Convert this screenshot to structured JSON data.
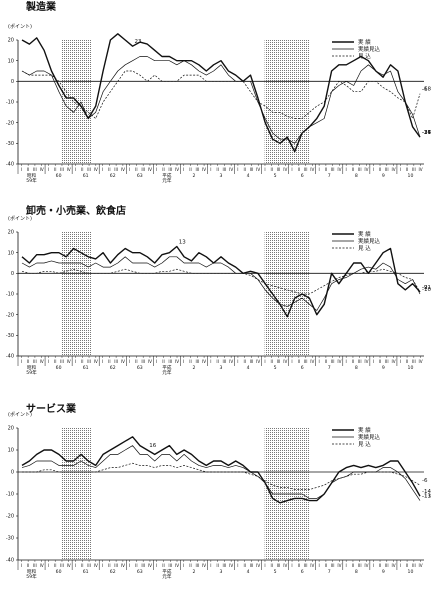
{
  "charts": [
    {
      "title": "製造業",
      "unit": "(ポイント)",
      "yticks": [
        20,
        10,
        0,
        -10,
        -20,
        -30,
        -40
      ],
      "ylim": [
        -40,
        20
      ],
      "legend": [
        "実 績",
        "実績見込",
        "見 込"
      ],
      "annotations": [
        {
          "i": 15,
          "s": 0,
          "text": "23"
        },
        {
          "i": 64,
          "s": 0,
          "text": "-34"
        },
        {
          "i": 112,
          "s": 0,
          "text": "-27"
        },
        {
          "i": 114,
          "s": 1,
          "text": "-27"
        },
        {
          "i": 114,
          "s": 2,
          "text": "-18"
        },
        {
          "i": 114,
          "s": 1,
          "text": "-16"
        },
        {
          "i": 115,
          "s": 2,
          "text": "-6"
        }
      ]
    },
    {
      "title": "卸売・小売業、飲食店",
      "unit": "(ポイント)",
      "yticks": [
        20,
        10,
        0,
        -10,
        -20,
        -30,
        -40
      ],
      "ylim": [
        -40,
        20
      ],
      "legend": [
        "実 績",
        "実績見込",
        "見 込"
      ],
      "annotations": [
        {
          "i": 21,
          "s": 0,
          "text": "13"
        },
        {
          "i": 62,
          "s": 0,
          "text": "-21"
        },
        {
          "i": 113,
          "s": 1,
          "text": "-10"
        },
        {
          "i": 115,
          "s": 2,
          "text": "-9"
        }
      ]
    },
    {
      "title": "サービス業",
      "unit": "(ポイント)",
      "yticks": [
        20,
        10,
        0,
        -10,
        -20,
        -30,
        -40
      ],
      "ylim": [
        -40,
        20
      ],
      "legend": [
        "実 績",
        "実績見込",
        "見 込"
      ],
      "annotations": [
        {
          "i": 17,
          "s": 0,
          "text": "16"
        },
        {
          "i": 62,
          "s": 0,
          "text": "-14"
        },
        {
          "i": 113,
          "s": 1,
          "text": "-11"
        },
        {
          "i": 115,
          "s": 2,
          "text": "-6"
        },
        {
          "i": 115,
          "s": 1,
          "text": "-13"
        }
      ]
    }
  ],
  "chart_data": [
    {
      "type": "line",
      "title": "製造業",
      "ylabel": "(ポイント)",
      "ylim": [
        -40,
        20
      ],
      "x_quarter_labels": [
        "I",
        "II",
        "III",
        "IV",
        "I",
        "II",
        "III",
        "IV",
        "I",
        "II",
        "III",
        "IV",
        "I",
        "II",
        "III",
        "IV",
        "I",
        "II",
        "III",
        "IV",
        "I",
        "II",
        "III",
        "IV",
        "I",
        "II",
        "III",
        "IV",
        "I",
        "II",
        "III",
        "IV",
        "I",
        "II",
        "III",
        "IV",
        "I",
        "II",
        "III",
        "IV",
        "I",
        "II",
        "III",
        "IV",
        "I",
        "II",
        "III",
        "IV",
        "I",
        "II",
        "III",
        "IV",
        "I",
        "II",
        "III",
        "IV",
        "I",
        "II",
        "III",
        "IV",
        "I",
        "II",
        "III",
        "IV",
        "I",
        "II",
        "III",
        "IV",
        "I",
        "II",
        "III",
        "IV",
        "I",
        "II",
        "III",
        "IV",
        "I",
        "II",
        "III",
        "IV",
        "I",
        "II",
        "III",
        "IV",
        "I",
        "II",
        "III",
        "IV",
        "I",
        "II",
        "III",
        "IV",
        "I",
        "II",
        "III",
        "IV",
        "I",
        "II",
        "III",
        "IV",
        "I",
        "II",
        "III",
        "IV",
        "I",
        "II",
        "III",
        "IV",
        "I",
        "II",
        "III",
        "IV",
        "I",
        "II",
        "III",
        "IV"
      ],
      "x_year_labels": [
        "昭和\n59年",
        "60",
        "61",
        "62",
        "63",
        "平成\n元年",
        "2",
        "3",
        "4",
        "5",
        "6",
        "7",
        "8",
        "9",
        "10"
      ],
      "shaded_periods": [
        [
          5,
          9
        ],
        [
          32,
          38
        ]
      ],
      "series": [
        {
          "name": "実 績",
          "style": "solid",
          "values": [
            20,
            18,
            21,
            15,
            5,
            -2,
            -8,
            -8,
            -12,
            -18,
            -12,
            5,
            20,
            23,
            20,
            17,
            19,
            18,
            15,
            12,
            12,
            10,
            10,
            10,
            8,
            5,
            8,
            10,
            5,
            3,
            0,
            3,
            -8,
            -20,
            -28,
            -30,
            -27,
            -34,
            -25,
            -22,
            -18,
            -12,
            5,
            8,
            8,
            10,
            12,
            10,
            5,
            2,
            8,
            5,
            -10,
            -22,
            -27
          ]
        },
        {
          "name": "実績見込",
          "style": "solid",
          "values": [
            5,
            3,
            5,
            5,
            3,
            -5,
            -12,
            -15,
            -10,
            -18,
            -15,
            -5,
            0,
            5,
            8,
            10,
            12,
            12,
            10,
            10,
            10,
            8,
            10,
            8,
            5,
            3,
            5,
            8,
            3,
            0,
            0,
            0,
            -10,
            -18,
            -25,
            -28,
            -28,
            -30,
            -25,
            -22,
            -20,
            -18,
            -5,
            -2,
            0,
            -2,
            5,
            8,
            5,
            3,
            5,
            -5,
            -10,
            -16,
            -27
          ]
        },
        {
          "name": "見 込",
          "style": "dashed",
          "values": [
            5,
            3,
            3,
            3,
            3,
            0,
            -5,
            -10,
            -12,
            -15,
            -18,
            -10,
            -5,
            0,
            5,
            5,
            3,
            0,
            3,
            0,
            0,
            0,
            3,
            3,
            3,
            0,
            0,
            0,
            0,
            0,
            0,
            -5,
            -10,
            -12,
            -15,
            -15,
            -17,
            -18,
            -18,
            -15,
            -12,
            -10,
            -5,
            0,
            -2,
            -5,
            -5,
            0,
            0,
            -3,
            -5,
            -8,
            -10,
            -18,
            -6
          ]
        }
      ]
    },
    {
      "type": "line",
      "title": "卸売・小売業、飲食店",
      "ylabel": "(ポイント)",
      "ylim": [
        -40,
        20
      ],
      "x_year_labels": [
        "昭和\n59年",
        "60",
        "61",
        "62",
        "63",
        "平成\n元年",
        "2",
        "3",
        "4",
        "5",
        "6",
        "7",
        "8",
        "9",
        "10"
      ],
      "shaded_periods": [
        [
          5,
          9
        ],
        [
          32,
          38
        ]
      ],
      "series": [
        {
          "name": "実 績",
          "style": "solid",
          "values": [
            8,
            5,
            9,
            9,
            10,
            10,
            8,
            12,
            10,
            8,
            7,
            10,
            5,
            9,
            12,
            10,
            10,
            8,
            5,
            9,
            10,
            13,
            8,
            6,
            10,
            8,
            5,
            8,
            5,
            3,
            0,
            1,
            0,
            -5,
            -10,
            -15,
            -21,
            -12,
            -10,
            -12,
            -20,
            -15,
            0,
            -5,
            0,
            5,
            5,
            0,
            5,
            10,
            12,
            -5,
            -8,
            -5,
            -9
          ]
        },
        {
          "name": "実績見込",
          "style": "solid",
          "values": [
            5,
            3,
            5,
            5,
            6,
            5,
            5,
            5,
            5,
            3,
            5,
            3,
            3,
            5,
            8,
            5,
            5,
            5,
            3,
            5,
            8,
            8,
            5,
            5,
            5,
            3,
            5,
            5,
            3,
            0,
            0,
            0,
            -3,
            -8,
            -12,
            -15,
            -16,
            -14,
            -12,
            -15,
            -18,
            -12,
            -5,
            -3,
            -2,
            0,
            2,
            3,
            2,
            5,
            3,
            -3,
            -5,
            -3,
            -10
          ]
        },
        {
          "name": "見 込",
          "style": "dashed",
          "values": [
            1,
            0,
            0,
            1,
            1,
            0,
            1,
            2,
            1,
            0,
            0,
            0,
            0,
            1,
            2,
            1,
            0,
            0,
            0,
            1,
            1,
            2,
            1,
            0,
            0,
            0,
            0,
            0,
            0,
            0,
            0,
            -1,
            -3,
            -5,
            -6,
            -7,
            -8,
            -9,
            -10,
            -10,
            -8,
            -6,
            -4,
            -2,
            -1,
            0,
            0,
            1,
            1,
            2,
            1,
            0,
            -2,
            -3,
            -9
          ]
        }
      ]
    },
    {
      "type": "line",
      "title": "サービス業",
      "ylabel": "(ポイント)",
      "ylim": [
        -40,
        20
      ],
      "x_year_labels": [
        "昭和\n59年",
        "60",
        "61",
        "62",
        "63",
        "平成\n元年",
        "2",
        "3",
        "4",
        "5",
        "6",
        "7",
        "8",
        "9",
        "10"
      ],
      "shaded_periods": [
        [
          5,
          9
        ],
        [
          32,
          38
        ]
      ],
      "series": [
        {
          "name": "実 績",
          "style": "solid",
          "values": [
            3,
            5,
            8,
            10,
            10,
            8,
            5,
            5,
            8,
            5,
            3,
            8,
            10,
            12,
            14,
            16,
            12,
            10,
            8,
            10,
            12,
            8,
            10,
            8,
            5,
            3,
            5,
            5,
            3,
            5,
            3,
            0,
            0,
            -5,
            -12,
            -14,
            -13,
            -12,
            -12,
            -13,
            -13,
            -10,
            -5,
            0,
            2,
            3,
            2,
            3,
            2,
            3,
            5,
            5,
            0,
            -5,
            -11
          ]
        },
        {
          "name": "実績見込",
          "style": "solid",
          "values": [
            2,
            3,
            5,
            5,
            5,
            3,
            3,
            3,
            5,
            3,
            2,
            5,
            8,
            8,
            10,
            12,
            8,
            8,
            5,
            8,
            8,
            5,
            8,
            5,
            3,
            2,
            3,
            3,
            2,
            3,
            2,
            0,
            -2,
            -5,
            -10,
            -10,
            -10,
            -10,
            -10,
            -12,
            -12,
            -10,
            -5,
            -3,
            -2,
            0,
            0,
            0,
            0,
            2,
            2,
            0,
            -3,
            -8,
            -13
          ]
        },
        {
          "name": "見 込",
          "style": "dashed",
          "values": [
            0,
            0,
            0,
            1,
            1,
            0,
            0,
            0,
            0,
            0,
            0,
            1,
            2,
            2,
            3,
            4,
            3,
            3,
            2,
            3,
            3,
            2,
            3,
            2,
            1,
            0,
            0,
            0,
            0,
            0,
            0,
            -1,
            -2,
            -4,
            -6,
            -7,
            -7,
            -8,
            -8,
            -8,
            -7,
            -6,
            -4,
            -3,
            -2,
            -1,
            -1,
            0,
            0,
            0,
            0,
            -1,
            -2,
            -4,
            -6
          ]
        }
      ]
    }
  ]
}
